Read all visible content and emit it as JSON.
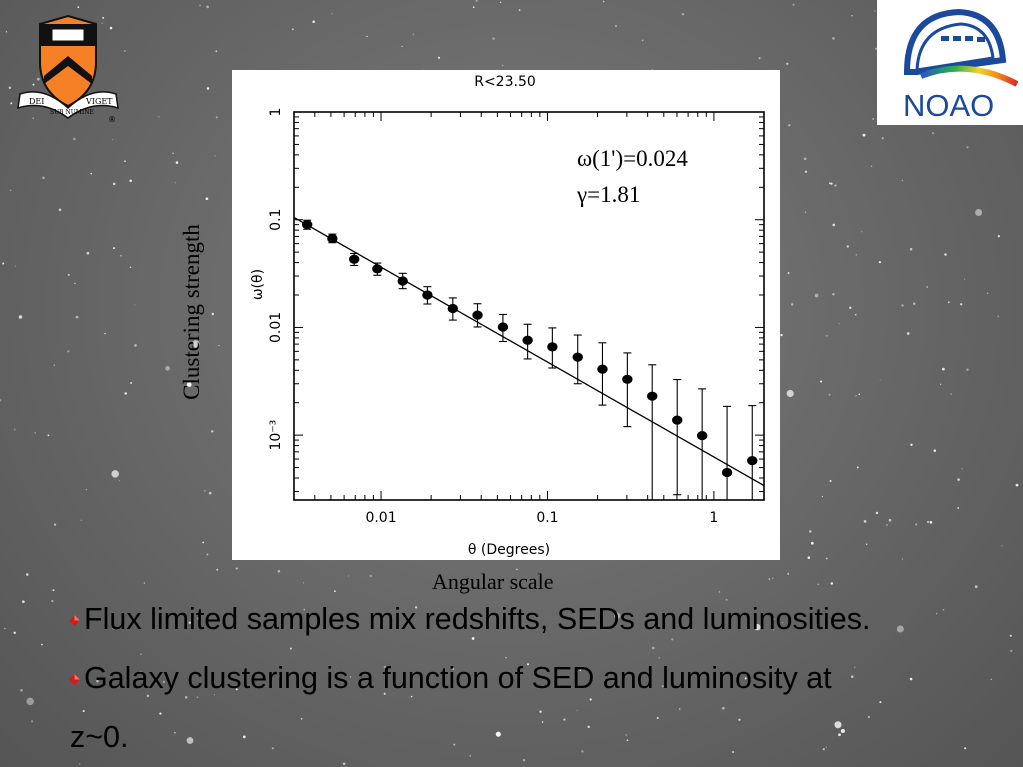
{
  "slide": {
    "ylabel_outer": "Clustering strength",
    "xlabel_outer": "Angular scale",
    "bullets": [
      {
        "text": "Flux limited samples mix redshifts, SEDs and luminosities."
      },
      {
        "text": "Galaxy clustering is a function of SED and luminosity at",
        "cont": "z~0."
      }
    ],
    "logos": {
      "left": {
        "name": "princeton-shield",
        "motto": [
          "DEI",
          "SUB NUMINE",
          "VIGET"
        ],
        "mark": "®"
      },
      "right": {
        "name": "noao-logo",
        "text": "NOAO"
      }
    },
    "colors": {
      "bullet": "#d21c1c",
      "shield": "#f58025",
      "noao_blue": "#1b4a9c"
    }
  },
  "chart_data": {
    "type": "scatter",
    "title": "R<23.50",
    "xlabel": "θ (Degrees)",
    "ylabel": "ω(θ)",
    "xscale": "log",
    "yscale": "log",
    "xlim": [
      0.003,
      2
    ],
    "ylim": [
      0.00025,
      1
    ],
    "xticks": [
      {
        "value": 0.01,
        "label": "0.01"
      },
      {
        "value": 0.1,
        "label": "0.1"
      },
      {
        "value": 1,
        "label": "1"
      }
    ],
    "yticks": [
      {
        "value": 1,
        "label": "1"
      },
      {
        "value": 0.1,
        "label": "0.1"
      },
      {
        "value": 0.01,
        "label": "0.01"
      },
      {
        "value": 0.001,
        "label": "10⁻³"
      }
    ],
    "annotations": [
      "ω(1')=0.024",
      "γ=1.81"
    ],
    "series": [
      {
        "x": [
          0.0036,
          0.0051,
          0.0069,
          0.0095,
          0.0135,
          0.019,
          0.027,
          0.038,
          0.054,
          0.076,
          0.107,
          0.152,
          0.214,
          0.302,
          0.426,
          0.602,
          0.85,
          1.2,
          1.7
        ],
        "y": [
          0.09,
          0.067,
          0.043,
          0.035,
          0.027,
          0.02,
          0.015,
          0.013,
          0.0101,
          0.0076,
          0.0066,
          0.0053,
          0.0041,
          0.0033,
          0.0023,
          0.00138,
          0.00099,
          0.00045,
          0.00058
        ],
        "yerr_low": [
          0.0084,
          0.0058,
          0.0054,
          0.0045,
          0.0041,
          0.0035,
          0.0033,
          0.0029,
          0.0027,
          0.0025,
          0.0024,
          0.0023,
          0.0022,
          0.0021,
          0.0021,
          0.0011,
          0.0008,
          0.0004,
          0.0005
        ],
        "yerr_high": [
          0.0089,
          0.0065,
          0.0056,
          0.0046,
          0.0048,
          0.0039,
          0.0038,
          0.0036,
          0.0031,
          0.0031,
          0.0033,
          0.0032,
          0.0031,
          0.0025,
          0.0022,
          0.0019,
          0.0017,
          0.0014,
          0.0013
        ]
      }
    ],
    "fit": {
      "x": [
        0.003,
        2
      ],
      "y": [
        0.105,
        0.00034
      ]
    }
  }
}
